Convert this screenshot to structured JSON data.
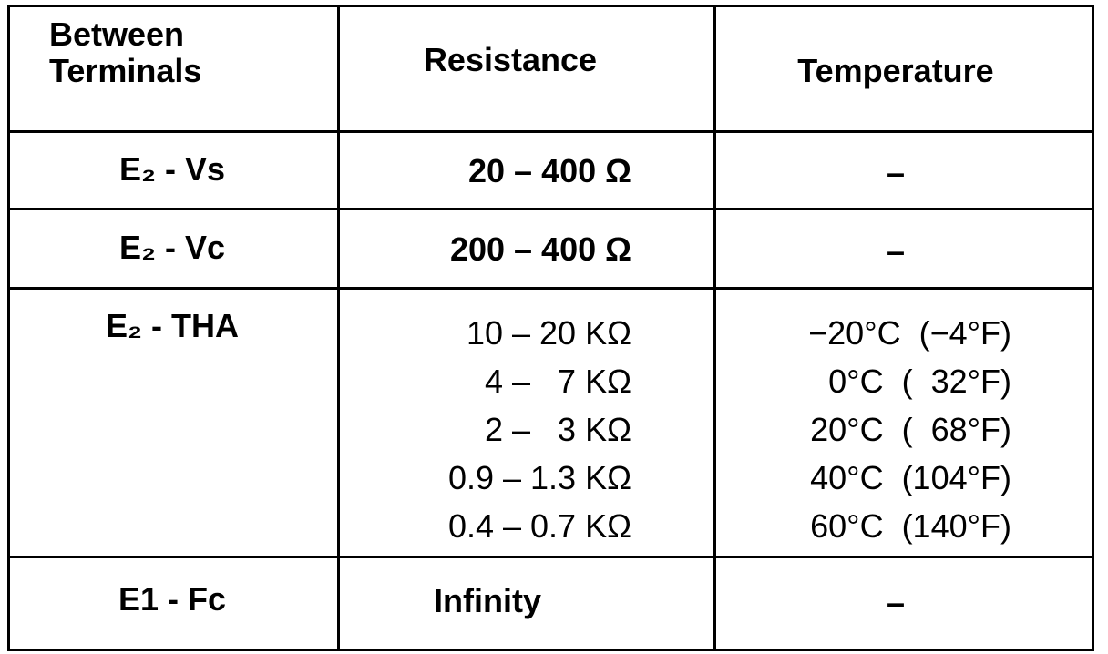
{
  "table": {
    "header": [
      "Between Terminals",
      "Resistance",
      "Temperature"
    ],
    "rows": [
      {
        "terminals": "E₂ - Vs",
        "resistance": [
          "20 – 400 Ω"
        ],
        "temperature": [
          "–"
        ]
      },
      {
        "terminals": "E₂ - Vc",
        "resistance": [
          "200 – 400 Ω"
        ],
        "temperature": [
          "–"
        ]
      },
      {
        "terminals": "E₂ - THA",
        "resistance": [
          "10 – 20 KΩ",
          "4 –   7 KΩ",
          "2 –   3 KΩ",
          "0.9 – 1.3 KΩ",
          "0.4 – 0.7 KΩ"
        ],
        "temperature": [
          "−20°C  (−4°F)",
          "0°C  (  32°F)",
          "20°C  (  68°F)",
          "40°C  (104°F)",
          "60°C  (140°F)"
        ]
      },
      {
        "terminals": "E1 - Fc",
        "resistance": [
          "Infinity"
        ],
        "temperature": [
          "–"
        ]
      }
    ]
  }
}
